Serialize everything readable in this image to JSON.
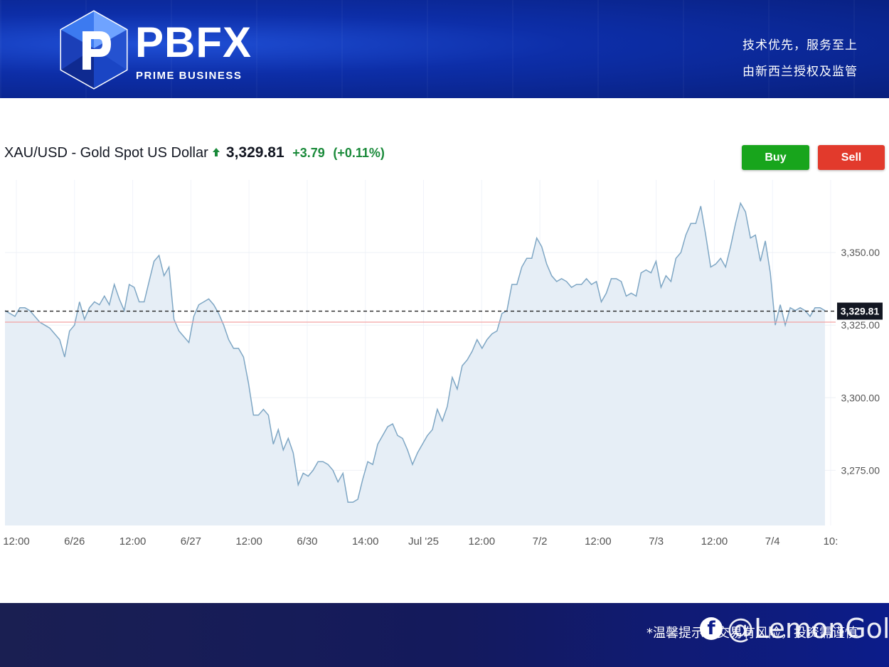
{
  "header": {
    "brand": "PBFX",
    "brand_sub": "PRIME BUSINESS",
    "tagline_1": "技术优先，服务至上",
    "tagline_2": "由新西兰授权及监管"
  },
  "quote": {
    "symbol": "XAU/USD - Gold Spot US Dollar",
    "direction_icon": "arrow-up-icon",
    "price": "3,329.81",
    "change": "+3.79",
    "change_pct": "(+0.11%)"
  },
  "buttons": {
    "buy": "Buy",
    "sell": "Sell"
  },
  "colors": {
    "line": "#7ea6c4",
    "area": "#e6eef6",
    "buy": "#18a51c",
    "sell": "#e23a2c",
    "reference": "#f4a3a3",
    "up": "#1a8a3a"
  },
  "footer": {
    "note": "*温馨提示：交易有风险，投资需谨慎",
    "watermark": "@LemonGold",
    "watermark_icon": "facebook-icon"
  },
  "chart_data": {
    "type": "area",
    "title": "XAU/USD - Gold Spot US Dollar",
    "ylim": [
      3256,
      3375
    ],
    "y_ticks": [
      3350,
      3325,
      3300,
      3275
    ],
    "y_tick_labels": [
      "3,350.00",
      "3,325.00",
      "3,300.00",
      "3,275.00"
    ],
    "x_tick_labels": [
      "12:00",
      "6/26",
      "12:00",
      "6/27",
      "12:00",
      "6/30",
      "14:00",
      "Jul '25",
      "12:00",
      "7/2",
      "12:00",
      "7/3",
      "12:00",
      "7/4",
      "10:"
    ],
    "last_price_label": "3,329.81",
    "last_price": 3329.81,
    "reference_price": 3326.02,
    "grid": true,
    "series": [
      {
        "values": [
          3330,
          3329,
          3328,
          3331,
          3331,
          3330,
          3328,
          3326,
          3325,
          3324,
          3322,
          3320,
          3314,
          3323,
          3325,
          3333,
          3327,
          3331,
          3333,
          3332,
          3335,
          3332,
          3339,
          3334,
          3330,
          3339,
          3338,
          3333,
          3333,
          3340,
          3347,
          3349,
          3342,
          3345,
          3327,
          3323,
          3321,
          3319,
          3328,
          3332,
          3333,
          3334,
          3332,
          3329,
          3325,
          3320,
          3317,
          3317,
          3314,
          3305,
          3294,
          3294,
          3296,
          3294,
          3284,
          3289,
          3282,
          3286,
          3281,
          3270,
          3274,
          3273,
          3275,
          3278,
          3278,
          3277,
          3275,
          3271,
          3274,
          3264,
          3264,
          3265,
          3272,
          3278,
          3277,
          3284,
          3287,
          3290,
          3291,
          3287,
          3286,
          3282,
          3277,
          3281,
          3284,
          3287,
          3289,
          3296,
          3292,
          3297,
          3307,
          3303,
          3311,
          3313,
          3316,
          3320,
          3317,
          3320,
          3322,
          3323,
          3329,
          3330,
          3339,
          3339,
          3345,
          3348,
          3348,
          3355,
          3352,
          3346,
          3342,
          3340,
          3341,
          3340,
          3338,
          3339,
          3339,
          3341,
          3339,
          3340,
          3333,
          3336,
          3341,
          3341,
          3340,
          3335,
          3336,
          3335,
          3343,
          3344,
          3343,
          3347,
          3338,
          3342,
          3340,
          3348,
          3350,
          3356,
          3360,
          3360,
          3366,
          3356,
          3345,
          3346,
          3348,
          3345,
          3352,
          3360,
          3367,
          3364,
          3355,
          3356,
          3347,
          3354,
          3343,
          3325,
          3332,
          3325,
          3331,
          3330,
          3331,
          3330,
          3328,
          3331,
          3331,
          3330
        ]
      }
    ]
  }
}
